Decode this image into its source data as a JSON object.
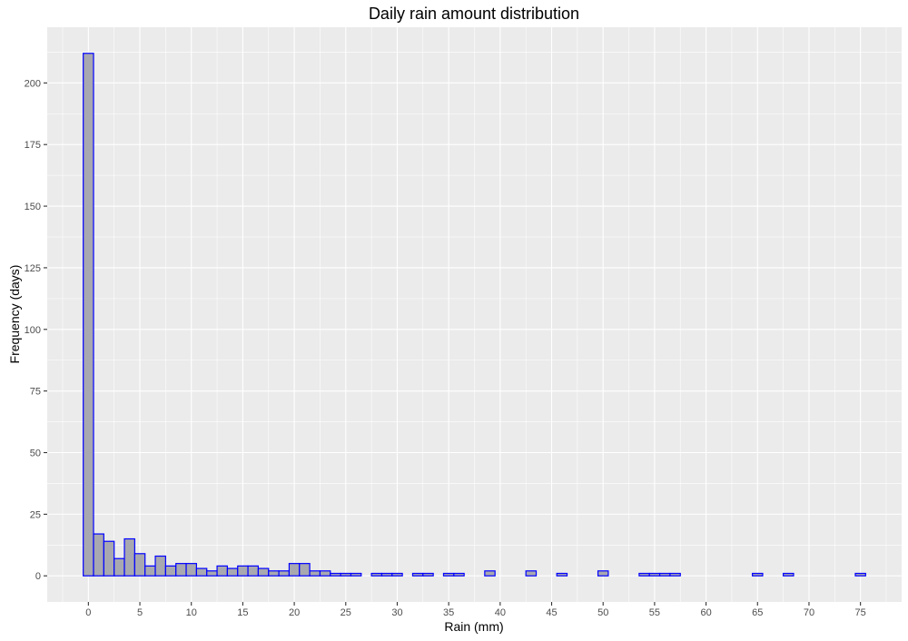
{
  "chart_data": {
    "type": "bar",
    "title": "Daily rain amount distribution",
    "xlabel": "Rain (mm)",
    "ylabel": "Frequency (days)",
    "xlim": [
      -4,
      79
    ],
    "ylim": [
      -10.6,
      222.6
    ],
    "x_ticks": [
      0,
      5,
      10,
      15,
      20,
      25,
      30,
      35,
      40,
      45,
      50,
      55,
      60,
      65,
      70,
      75
    ],
    "y_ticks": [
      0,
      25,
      50,
      75,
      100,
      125,
      150,
      175,
      200
    ],
    "bin_width": 1,
    "grid": true,
    "colors": {
      "panel": "#ebebeb",
      "grid": "#ffffff",
      "bar_fill": "#a8a8b0",
      "bar_outline": "#0000ff"
    },
    "bins": [
      {
        "x": 0,
        "count": 212
      },
      {
        "x": 1,
        "count": 17
      },
      {
        "x": 2,
        "count": 14
      },
      {
        "x": 3,
        "count": 7
      },
      {
        "x": 4,
        "count": 15
      },
      {
        "x": 5,
        "count": 9
      },
      {
        "x": 6,
        "count": 4
      },
      {
        "x": 7,
        "count": 8
      },
      {
        "x": 8,
        "count": 4
      },
      {
        "x": 9,
        "count": 5
      },
      {
        "x": 10,
        "count": 5
      },
      {
        "x": 11,
        "count": 3
      },
      {
        "x": 12,
        "count": 2
      },
      {
        "x": 13,
        "count": 4
      },
      {
        "x": 14,
        "count": 3
      },
      {
        "x": 15,
        "count": 4
      },
      {
        "x": 16,
        "count": 4
      },
      {
        "x": 17,
        "count": 3
      },
      {
        "x": 18,
        "count": 2
      },
      {
        "x": 19,
        "count": 2
      },
      {
        "x": 20,
        "count": 5
      },
      {
        "x": 21,
        "count": 5
      },
      {
        "x": 22,
        "count": 2
      },
      {
        "x": 23,
        "count": 2
      },
      {
        "x": 24,
        "count": 1
      },
      {
        "x": 25,
        "count": 1
      },
      {
        "x": 26,
        "count": 1
      },
      {
        "x": 27,
        "count": 0
      },
      {
        "x": 28,
        "count": 1
      },
      {
        "x": 29,
        "count": 1
      },
      {
        "x": 30,
        "count": 1
      },
      {
        "x": 31,
        "count": 0
      },
      {
        "x": 32,
        "count": 1
      },
      {
        "x": 33,
        "count": 1
      },
      {
        "x": 34,
        "count": 0
      },
      {
        "x": 35,
        "count": 1
      },
      {
        "x": 36,
        "count": 1
      },
      {
        "x": 37,
        "count": 0
      },
      {
        "x": 38,
        "count": 0
      },
      {
        "x": 39,
        "count": 2
      },
      {
        "x": 40,
        "count": 0
      },
      {
        "x": 41,
        "count": 0
      },
      {
        "x": 42,
        "count": 0
      },
      {
        "x": 43,
        "count": 2
      },
      {
        "x": 44,
        "count": 0
      },
      {
        "x": 45,
        "count": 0
      },
      {
        "x": 46,
        "count": 1
      },
      {
        "x": 47,
        "count": 0
      },
      {
        "x": 48,
        "count": 0
      },
      {
        "x": 49,
        "count": 0
      },
      {
        "x": 50,
        "count": 2
      },
      {
        "x": 51,
        "count": 0
      },
      {
        "x": 52,
        "count": 0
      },
      {
        "x": 53,
        "count": 0
      },
      {
        "x": 54,
        "count": 1
      },
      {
        "x": 55,
        "count": 1
      },
      {
        "x": 56,
        "count": 1
      },
      {
        "x": 57,
        "count": 1
      },
      {
        "x": 58,
        "count": 0
      },
      {
        "x": 59,
        "count": 0
      },
      {
        "x": 60,
        "count": 0
      },
      {
        "x": 61,
        "count": 0
      },
      {
        "x": 62,
        "count": 0
      },
      {
        "x": 63,
        "count": 0
      },
      {
        "x": 64,
        "count": 0
      },
      {
        "x": 65,
        "count": 1
      },
      {
        "x": 66,
        "count": 0
      },
      {
        "x": 67,
        "count": 0
      },
      {
        "x": 68,
        "count": 1
      },
      {
        "x": 69,
        "count": 0
      },
      {
        "x": 70,
        "count": 0
      },
      {
        "x": 71,
        "count": 0
      },
      {
        "x": 72,
        "count": 0
      },
      {
        "x": 73,
        "count": 0
      },
      {
        "x": 74,
        "count": 0
      },
      {
        "x": 75,
        "count": 1
      }
    ]
  }
}
